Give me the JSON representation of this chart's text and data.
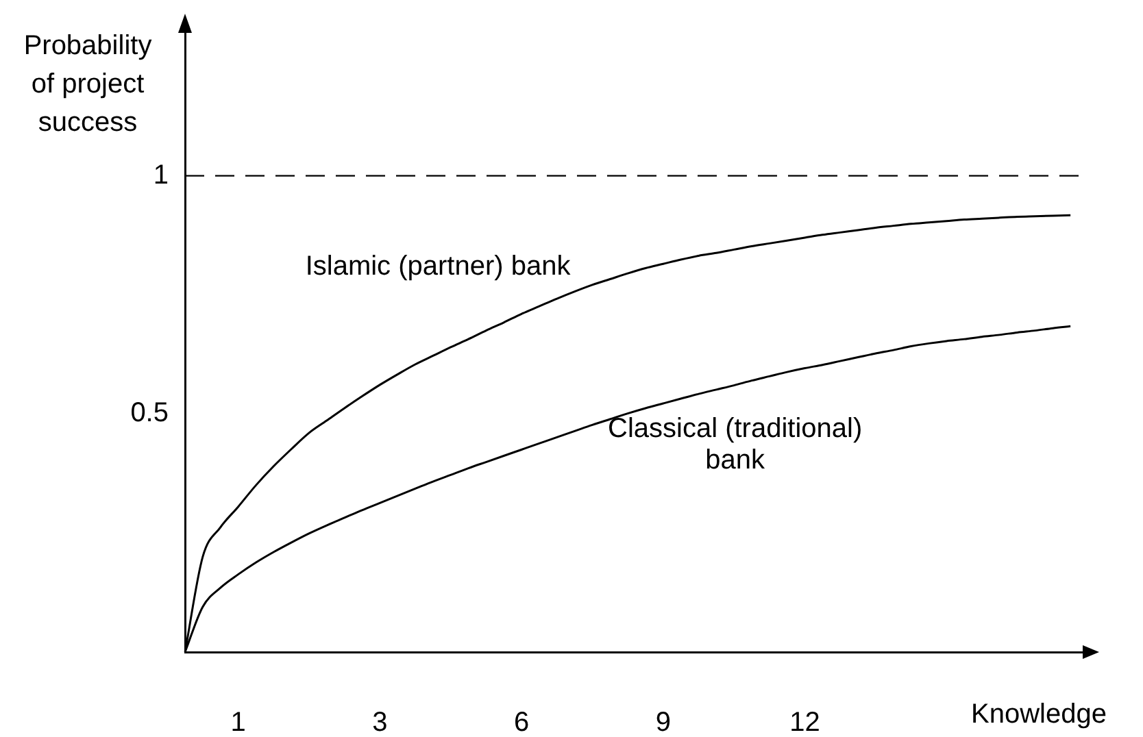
{
  "chart_data": {
    "type": "line",
    "xlabel": "Knowledge",
    "ylabel": "Probability of project success",
    "categories": [
      null,
      null,
      null,
      "1",
      null,
      null,
      null,
      null,
      null,
      null,
      null,
      "3",
      null,
      null,
      null,
      null,
      null,
      null,
      null,
      "6",
      null,
      null,
      null,
      null,
      null,
      null,
      null,
      "9",
      null,
      null,
      null,
      null,
      null,
      null,
      null,
      "12",
      null,
      null,
      null,
      null,
      null,
      null,
      null,
      null,
      null,
      null,
      null,
      null,
      null,
      null,
      null,
      null
    ],
    "ylim": [
      0,
      1.3
    ],
    "yticks": [
      0.5,
      1
    ],
    "grid": false,
    "line_style": "solid",
    "ref_lines": [
      {
        "axis": "y",
        "value": 1,
        "label": null,
        "color": "#000000",
        "line_style": "dashed"
      }
    ],
    "series": [
      {
        "name": "Islamic (partner) bank",
        "color": "#000000",
        "values": [
          0,
          0.2,
          0.262,
          0.305,
          0.35,
          0.39,
          0.426,
          0.46,
          0.486,
          0.512,
          0.537,
          0.561,
          0.583,
          0.604,
          0.622,
          0.64,
          0.657,
          0.675,
          0.692,
          0.71,
          0.726,
          0.742,
          0.757,
          0.771,
          0.783,
          0.795,
          0.806,
          0.815,
          0.824,
          0.832,
          0.838,
          0.845,
          0.852,
          0.858,
          0.864,
          0.87,
          0.876,
          0.881,
          0.886,
          0.891,
          0.895,
          0.899,
          0.902,
          0.905,
          0.908,
          0.91,
          0.912,
          0.914,
          0.915,
          0.916,
          0.917,
          null
        ]
      },
      {
        "name": "Classical (traditional) bank",
        "color": "#000000",
        "values": [
          0,
          0.095,
          0.135,
          0.163,
          0.188,
          0.21,
          0.23,
          0.249,
          0.266,
          0.282,
          0.298,
          0.313,
          0.328,
          0.343,
          0.358,
          0.372,
          0.386,
          0.399,
          0.412,
          0.425,
          0.438,
          0.451,
          0.464,
          0.477,
          0.489,
          0.501,
          0.512,
          0.522,
          0.532,
          0.542,
          0.551,
          0.56,
          0.57,
          0.579,
          0.588,
          0.596,
          0.603,
          0.611,
          0.619,
          0.627,
          0.634,
          0.642,
          0.648,
          0.653,
          0.657,
          0.662,
          0.666,
          0.671,
          0.675,
          0.68,
          0.684,
          null
        ]
      }
    ]
  }
}
